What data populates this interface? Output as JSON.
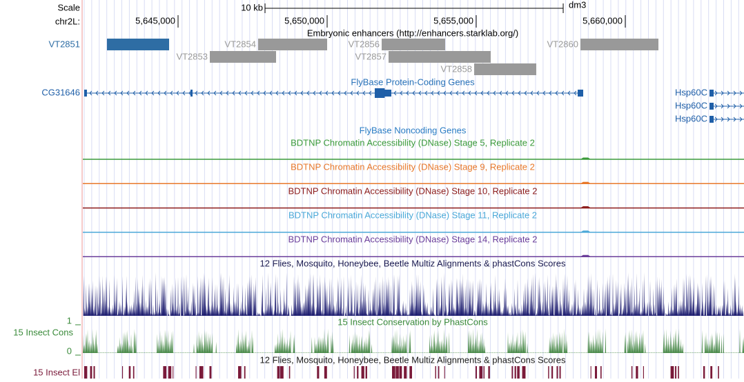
{
  "header": {
    "scale": "Scale",
    "scale_bar": {
      "label": "10 kb",
      "start": 5647917,
      "end": 5657917
    },
    "assembly": "dm3",
    "chrom": "chr2L:",
    "xlim": [
      5641806,
      5663981
    ],
    "ticks": [
      {
        "value": 5645000,
        "label": "5,645,000"
      },
      {
        "value": 5650000,
        "label": "5,650,000"
      },
      {
        "value": 5655000,
        "label": "5,655,000"
      },
      {
        "value": 5660000,
        "label": "5,660,000"
      }
    ]
  },
  "enhancers": {
    "title": "Embryonic enhancers (http://enhancers.starklab.org/)",
    "items": [
      {
        "name": "VT2851",
        "start": 5642616,
        "end": 5644700,
        "row": 0,
        "color": "#2e6da4"
      },
      {
        "name": "VT2854",
        "start": 5647685,
        "end": 5650000,
        "row": 0,
        "color": "#999999"
      },
      {
        "name": "VT2856",
        "start": 5651829,
        "end": 5653958,
        "row": 0,
        "color": "#999999"
      },
      {
        "name": "VT2860",
        "start": 5658495,
        "end": 5661111,
        "row": 0,
        "color": "#999999"
      },
      {
        "name": "VT2853",
        "start": 5646065,
        "end": 5648287,
        "row": 1,
        "color": "#999999"
      },
      {
        "name": "VT2857",
        "start": 5652060,
        "end": 5655486,
        "row": 1,
        "color": "#999999"
      },
      {
        "name": "VT2858",
        "start": 5654931,
        "end": 5657014,
        "row": 2,
        "color": "#999999"
      }
    ]
  },
  "genes": {
    "title": "FlyBase Protein-Coding Genes",
    "items": [
      {
        "name": "CG31646",
        "strand": "-",
        "start": 5641852,
        "end": 5658588,
        "row": 0,
        "exons": [
          [
            5641852,
            5641944
          ],
          [
            5645417,
            5645486
          ],
          [
            5651597,
            5652153
          ],
          [
            5658403,
            5658588
          ]
        ]
      },
      {
        "name": "Hsp60C",
        "strand": "+",
        "start": 5662824,
        "end": 5663981,
        "row": 0,
        "exons": [
          [
            5662824,
            5662963
          ]
        ]
      },
      {
        "name": "Hsp60C",
        "strand": "+",
        "start": 5662824,
        "end": 5663981,
        "row": 1,
        "exons": [
          [
            5662824,
            5662963
          ]
        ]
      },
      {
        "name": "Hsp60C",
        "strand": "+",
        "start": 5662824,
        "end": 5663981,
        "row": 2,
        "exons": [
          [
            5662824,
            5662963
          ]
        ]
      }
    ]
  },
  "noncoding": {
    "title": "FlyBase Noncoding Genes"
  },
  "dnase": [
    {
      "title": "BDTNP Chromatin Accessibility (DNase) Stage 5, Replicate 2",
      "color": "#3a9a3a"
    },
    {
      "title": "BDTNP Chromatin Accessibility (DNase) Stage 9, Replicate 2",
      "color": "#e8782a"
    },
    {
      "title": "BDTNP Chromatin Accessibility (DNase) Stage 10, Replicate 2",
      "color": "#8b1a1a"
    },
    {
      "title": "BDTNP Chromatin Accessibility (DNase) Stage 11, Replicate 2",
      "color": "#4aa8d8"
    },
    {
      "title": "BDTNP Chromatin Accessibility (DNase) Stage 14, Replicate 2",
      "color": "#6a3d9a"
    }
  ],
  "multiz": {
    "title": "12 Flies, Mosquito, Honeybee, Beetle Multiz Alignments & phastCons Scores",
    "color": "#1a1a6e"
  },
  "cons": {
    "title": "15 Insect Conservation by PhastCons",
    "label": "15 Insect Cons",
    "ylim": [
      0,
      1
    ],
    "color": "#4a8a4a"
  },
  "elements": {
    "title": "12 Flies, Mosquito, Honeybee, Beetle Multiz Alignments & phastCons Scores",
    "label": "15 Insect El",
    "color": "#7a1a3a"
  }
}
